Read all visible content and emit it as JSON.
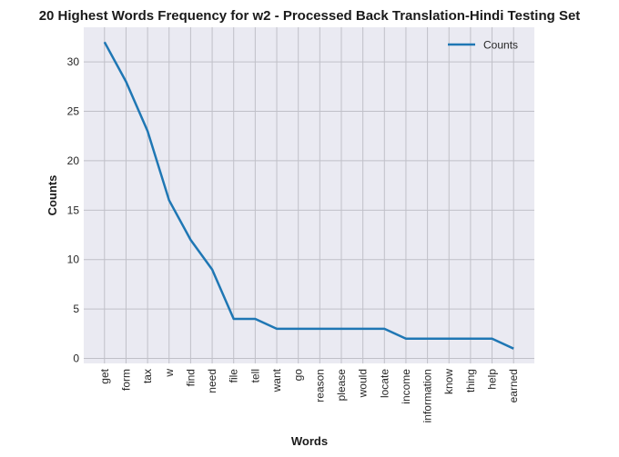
{
  "chart_data": {
    "type": "line",
    "title": "20 Highest Words Frequency for w2 - Processed Back Translation-Hindi Testing Set",
    "xlabel": "Words",
    "ylabel": "Counts",
    "categories": [
      "get",
      "form",
      "tax",
      "w",
      "find",
      "need",
      "file",
      "tell",
      "want",
      "go",
      "reason",
      "please",
      "would",
      "locate",
      "income",
      "information",
      "know",
      "thing",
      "help",
      "earned"
    ],
    "series": [
      {
        "name": "Counts",
        "values": [
          32,
          28,
          23,
          16,
          12,
          9,
          4,
          4,
          3,
          3,
          3,
          3,
          3,
          3,
          2,
          2,
          2,
          2,
          2,
          1
        ],
        "color": "#1f77b4"
      }
    ],
    "ylim": [
      -0.5,
      33.5
    ],
    "yticks": [
      0,
      5,
      10,
      15,
      20,
      25,
      30
    ],
    "grid": true,
    "legend_position": "top-right",
    "background": "#eaeaf2",
    "grid_color": "#c0c0c8"
  }
}
